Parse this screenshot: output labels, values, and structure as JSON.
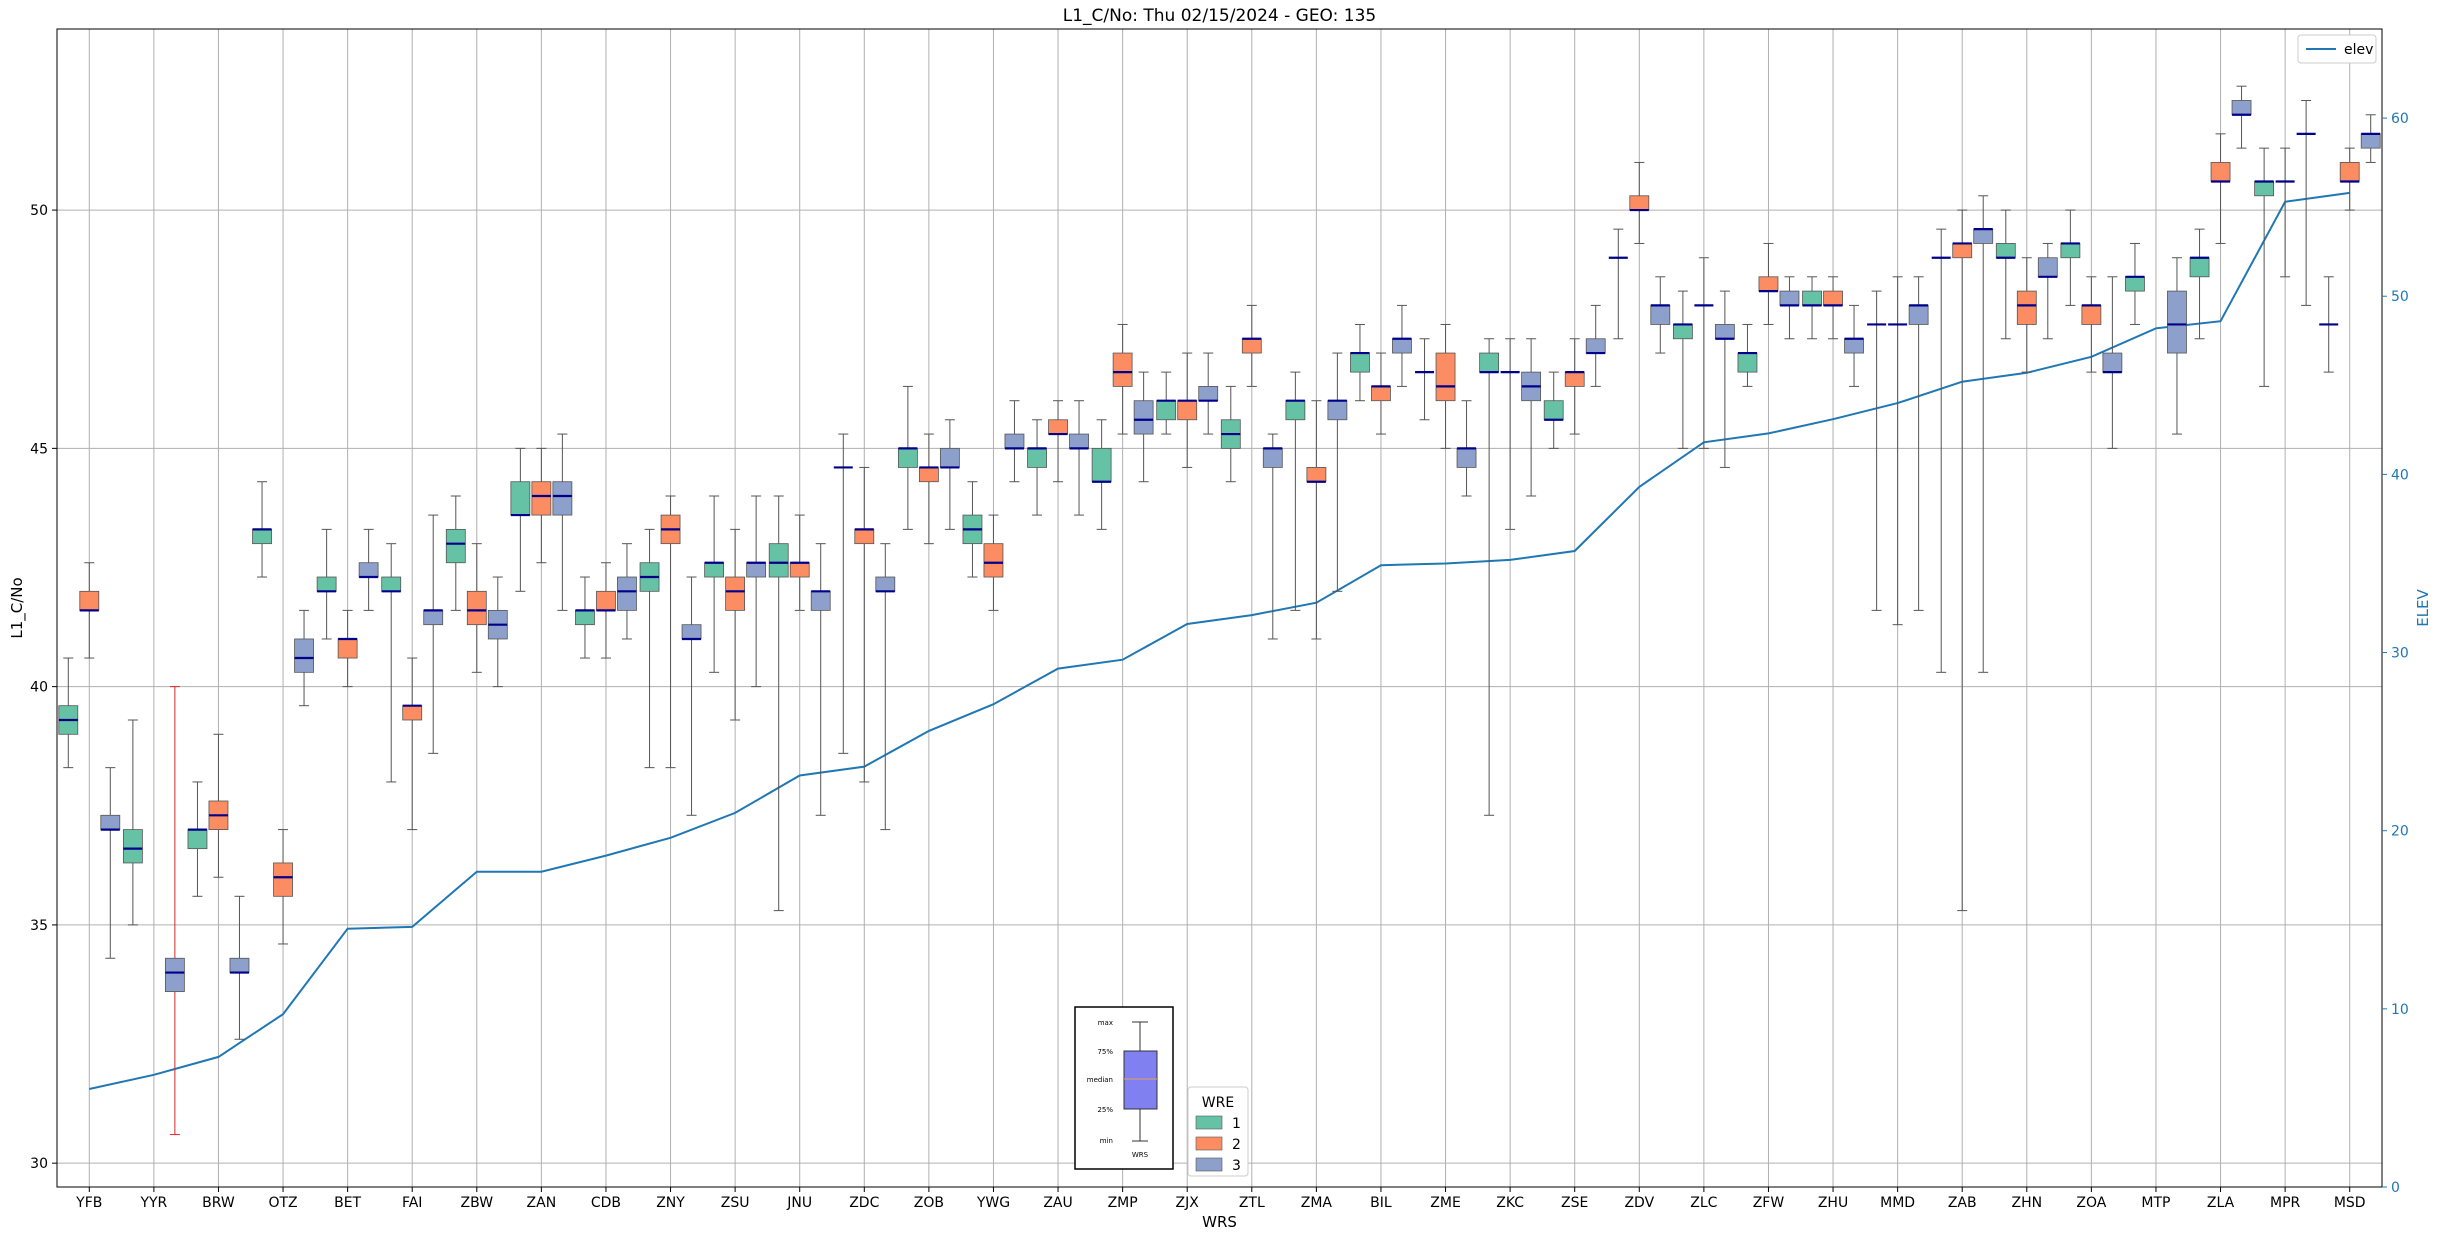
{
  "chart_data": {
    "type": "box",
    "title": "L1_C/No: Thu 02/15/2024 - GEO: 135",
    "xlabel": "WRS",
    "ylabel": "L1_C/No",
    "y2label": "ELEV",
    "ylim": [
      29.5,
      53.8
    ],
    "y2lim": [
      0,
      65
    ],
    "yticks": [
      30,
      35,
      40,
      45,
      50
    ],
    "y2ticks": [
      0,
      10,
      20,
      30,
      40,
      50,
      60
    ],
    "grid": true,
    "series_names": [
      "1",
      "2",
      "3"
    ],
    "series_colors": [
      "#66c2a5",
      "#fc8d62",
      "#8da0cb"
    ],
    "median_color": "#00008b",
    "elev_color": "#1f77b4",
    "whisker_color": "#555555",
    "categories": [
      "YFB",
      "YYR",
      "BRW",
      "OTZ",
      "BET",
      "FAI",
      "ZBW",
      "ZAN",
      "CDB",
      "ZNY",
      "ZSU",
      "JNU",
      "ZDC",
      "ZOB",
      "YWG",
      "ZAU",
      "ZMP",
      "ZJX",
      "ZTL",
      "ZMA",
      "BIL",
      "ZME",
      "ZKC",
      "ZSE",
      "ZDV",
      "ZLC",
      "ZFW",
      "ZHU",
      "MMD",
      "ZAB",
      "ZHN",
      "ZOA",
      "MTP",
      "ZLA",
      "MPR",
      "MSD"
    ],
    "boxes": [
      {
        "station": "YFB",
        "wre": 1,
        "min": 38.3,
        "q1": 39.0,
        "median": 39.3,
        "q3": 39.6,
        "max": 40.6
      },
      {
        "station": "YFB",
        "wre": 2,
        "min": 40.6,
        "q1": 41.6,
        "median": 41.6,
        "q3": 42.0,
        "max": 42.6
      },
      {
        "station": "YFB",
        "wre": 3,
        "min": 34.3,
        "q1": 37.0,
        "median": 37.0,
        "q3": 37.3,
        "max": 38.3
      },
      {
        "station": "YYR",
        "wre": 1,
        "min": 35.0,
        "q1": 36.3,
        "median": 36.6,
        "q3": 37.0,
        "max": 39.3
      },
      {
        "station": "YYR",
        "wre": 3,
        "min": 30.6,
        "q1": 33.6,
        "median": 34.0,
        "q3": 34.3,
        "max": 40.0,
        "whisker_color": "#d62728"
      },
      {
        "station": "BRW",
        "wre": 1,
        "min": 35.6,
        "q1": 36.6,
        "median": 37.0,
        "q3": 37.0,
        "max": 38.0
      },
      {
        "station": "BRW",
        "wre": 2,
        "min": 36.0,
        "q1": 37.0,
        "median": 37.3,
        "q3": 37.6,
        "max": 39.0
      },
      {
        "station": "BRW",
        "wre": 3,
        "min": 32.6,
        "q1": 34.0,
        "median": 34.0,
        "q3": 34.3,
        "max": 35.6
      },
      {
        "station": "OTZ",
        "wre": 1,
        "min": 42.3,
        "q1": 43.0,
        "median": 43.3,
        "q3": 43.3,
        "max": 44.3
      },
      {
        "station": "OTZ",
        "wre": 2,
        "min": 34.6,
        "q1": 35.6,
        "median": 36.0,
        "q3": 36.3,
        "max": 37.0
      },
      {
        "station": "OTZ",
        "wre": 3,
        "min": 39.6,
        "q1": 40.3,
        "median": 40.6,
        "q3": 41.0,
        "max": 41.6
      },
      {
        "station": "BET",
        "wre": 1,
        "min": 41.0,
        "q1": 42.0,
        "median": 42.0,
        "q3": 42.3,
        "max": 43.3
      },
      {
        "station": "BET",
        "wre": 2,
        "min": 40.0,
        "q1": 40.6,
        "median": 41.0,
        "q3": 41.0,
        "max": 41.6
      },
      {
        "station": "BET",
        "wre": 3,
        "min": 41.6,
        "q1": 42.3,
        "median": 42.3,
        "q3": 42.6,
        "max": 43.3
      },
      {
        "station": "FAI",
        "wre": 1,
        "min": 38.0,
        "q1": 42.0,
        "median": 42.0,
        "q3": 42.3,
        "max": 43.0
      },
      {
        "station": "FAI",
        "wre": 2,
        "min": 37.0,
        "q1": 39.3,
        "median": 39.6,
        "q3": 39.6,
        "max": 40.6
      },
      {
        "station": "FAI",
        "wre": 3,
        "min": 38.6,
        "q1": 41.3,
        "median": 41.6,
        "q3": 41.6,
        "max": 43.6
      },
      {
        "station": "ZBW",
        "wre": 1,
        "min": 41.6,
        "q1": 42.6,
        "median": 43.0,
        "q3": 43.3,
        "max": 44.0
      },
      {
        "station": "ZBW",
        "wre": 2,
        "min": 40.3,
        "q1": 41.3,
        "median": 41.6,
        "q3": 42.0,
        "max": 43.0
      },
      {
        "station": "ZBW",
        "wre": 3,
        "min": 40.0,
        "q1": 41.0,
        "median": 41.3,
        "q3": 41.6,
        "max": 42.3
      },
      {
        "station": "ZAN",
        "wre": 1,
        "min": 42.0,
        "q1": 43.6,
        "median": 43.6,
        "q3": 44.3,
        "max": 45.0
      },
      {
        "station": "ZAN",
        "wre": 2,
        "min": 42.6,
        "q1": 43.6,
        "median": 44.0,
        "q3": 44.3,
        "max": 45.0
      },
      {
        "station": "ZAN",
        "wre": 3,
        "min": 41.6,
        "q1": 43.6,
        "median": 44.0,
        "q3": 44.3,
        "max": 45.3
      },
      {
        "station": "CDB",
        "wre": 1,
        "min": 40.6,
        "q1": 41.3,
        "median": 41.6,
        "q3": 41.6,
        "max": 42.3
      },
      {
        "station": "CDB",
        "wre": 2,
        "min": 40.6,
        "q1": 41.6,
        "median": 41.6,
        "q3": 42.0,
        "max": 42.6
      },
      {
        "station": "CDB",
        "wre": 3,
        "min": 41.0,
        "q1": 41.6,
        "median": 42.0,
        "q3": 42.3,
        "max": 43.0
      },
      {
        "station": "ZNY",
        "wre": 1,
        "min": 38.3,
        "q1": 42.0,
        "median": 42.3,
        "q3": 42.6,
        "max": 43.3
      },
      {
        "station": "ZNY",
        "wre": 2,
        "min": 38.3,
        "q1": 43.0,
        "median": 43.3,
        "q3": 43.6,
        "max": 44.0
      },
      {
        "station": "ZNY",
        "wre": 3,
        "min": 37.3,
        "q1": 41.0,
        "median": 41.0,
        "q3": 41.3,
        "max": 42.3
      },
      {
        "station": "ZSU",
        "wre": 1,
        "min": 40.3,
        "q1": 42.3,
        "median": 42.6,
        "q3": 42.6,
        "max": 44.0
      },
      {
        "station": "ZSU",
        "wre": 2,
        "min": 39.3,
        "q1": 41.6,
        "median": 42.0,
        "q3": 42.3,
        "max": 43.3
      },
      {
        "station": "ZSU",
        "wre": 3,
        "min": 40.0,
        "q1": 42.3,
        "median": 42.6,
        "q3": 42.6,
        "max": 44.0
      },
      {
        "station": "JNU",
        "wre": 1,
        "min": 35.3,
        "q1": 42.3,
        "median": 42.6,
        "q3": 43.0,
        "max": 44.0
      },
      {
        "station": "JNU",
        "wre": 2,
        "min": 41.6,
        "q1": 42.3,
        "median": 42.6,
        "q3": 42.6,
        "max": 43.6
      },
      {
        "station": "JNU",
        "wre": 3,
        "min": 37.3,
        "q1": 41.6,
        "median": 42.0,
        "q3": 42.0,
        "max": 43.0
      },
      {
        "station": "ZDC",
        "wre": 1,
        "min": 38.6,
        "q1": 44.6,
        "median": 44.6,
        "q3": 44.6,
        "max": 45.3
      },
      {
        "station": "ZDC",
        "wre": 2,
        "min": 38.0,
        "q1": 43.0,
        "median": 43.3,
        "q3": 43.3,
        "max": 44.6
      },
      {
        "station": "ZDC",
        "wre": 3,
        "min": 37.0,
        "q1": 42.0,
        "median": 42.0,
        "q3": 42.3,
        "max": 43.0
      },
      {
        "station": "ZOB",
        "wre": 1,
        "min": 43.3,
        "q1": 44.6,
        "median": 45.0,
        "q3": 45.0,
        "max": 46.3
      },
      {
        "station": "ZOB",
        "wre": 2,
        "min": 43.0,
        "q1": 44.3,
        "median": 44.6,
        "q3": 44.6,
        "max": 45.3
      },
      {
        "station": "ZOB",
        "wre": 3,
        "min": 43.3,
        "q1": 44.6,
        "median": 44.6,
        "q3": 45.0,
        "max": 45.6
      },
      {
        "station": "YWG",
        "wre": 1,
        "min": 42.3,
        "q1": 43.0,
        "median": 43.3,
        "q3": 43.6,
        "max": 44.3
      },
      {
        "station": "YWG",
        "wre": 2,
        "min": 41.6,
        "q1": 42.3,
        "median": 42.6,
        "q3": 43.0,
        "max": 43.6
      },
      {
        "station": "YWG",
        "wre": 3,
        "min": 44.3,
        "q1": 45.0,
        "median": 45.0,
        "q3": 45.3,
        "max": 46.0
      },
      {
        "station": "ZAU",
        "wre": 1,
        "min": 43.6,
        "q1": 44.6,
        "median": 45.0,
        "q3": 45.0,
        "max": 45.6
      },
      {
        "station": "ZAU",
        "wre": 2,
        "min": 44.3,
        "q1": 45.3,
        "median": 45.3,
        "q3": 45.6,
        "max": 46.0
      },
      {
        "station": "ZAU",
        "wre": 3,
        "min": 43.6,
        "q1": 45.0,
        "median": 45.0,
        "q3": 45.3,
        "max": 46.0
      },
      {
        "station": "ZMP",
        "wre": 1,
        "min": 43.3,
        "q1": 44.3,
        "median": 44.3,
        "q3": 45.0,
        "max": 45.6
      },
      {
        "station": "ZMP",
        "wre": 2,
        "min": 45.3,
        "q1": 46.3,
        "median": 46.6,
        "q3": 47.0,
        "max": 47.6
      },
      {
        "station": "ZMP",
        "wre": 3,
        "min": 44.3,
        "q1": 45.3,
        "median": 45.6,
        "q3": 46.0,
        "max": 46.6
      },
      {
        "station": "ZJX",
        "wre": 1,
        "min": 45.3,
        "q1": 45.6,
        "median": 46.0,
        "q3": 46.0,
        "max": 46.6
      },
      {
        "station": "ZJX",
        "wre": 2,
        "min": 44.6,
        "q1": 45.6,
        "median": 46.0,
        "q3": 46.0,
        "max": 47.0
      },
      {
        "station": "ZJX",
        "wre": 3,
        "min": 45.3,
        "q1": 46.0,
        "median": 46.0,
        "q3": 46.3,
        "max": 47.0
      },
      {
        "station": "ZTL",
        "wre": 1,
        "min": 44.3,
        "q1": 45.0,
        "median": 45.3,
        "q3": 45.6,
        "max": 46.3
      },
      {
        "station": "ZTL",
        "wre": 2,
        "min": 46.3,
        "q1": 47.0,
        "median": 47.3,
        "q3": 47.3,
        "max": 48.0
      },
      {
        "station": "ZTL",
        "wre": 3,
        "min": 41.0,
        "q1": 44.6,
        "median": 45.0,
        "q3": 45.0,
        "max": 45.3
      },
      {
        "station": "ZMA",
        "wre": 1,
        "min": 41.6,
        "q1": 45.6,
        "median": 46.0,
        "q3": 46.0,
        "max": 46.6
      },
      {
        "station": "ZMA",
        "wre": 2,
        "min": 41.0,
        "q1": 44.3,
        "median": 44.3,
        "q3": 44.6,
        "max": 46.0
      },
      {
        "station": "ZMA",
        "wre": 3,
        "min": 42.0,
        "q1": 45.6,
        "median": 46.0,
        "q3": 46.0,
        "max": 47.0
      },
      {
        "station": "BIL",
        "wre": 1,
        "min": 46.0,
        "q1": 46.6,
        "median": 47.0,
        "q3": 47.0,
        "max": 47.6
      },
      {
        "station": "BIL",
        "wre": 2,
        "min": 45.3,
        "q1": 46.0,
        "median": 46.3,
        "q3": 46.3,
        "max": 47.0
      },
      {
        "station": "BIL",
        "wre": 3,
        "min": 46.3,
        "q1": 47.0,
        "median": 47.3,
        "q3": 47.3,
        "max": 48.0
      },
      {
        "station": "ZME",
        "wre": 1,
        "min": 45.6,
        "q1": 46.6,
        "median": 46.6,
        "q3": 46.6,
        "max": 47.3
      },
      {
        "station": "ZME",
        "wre": 2,
        "min": 45.0,
        "q1": 46.0,
        "median": 46.3,
        "q3": 47.0,
        "max": 47.6
      },
      {
        "station": "ZME",
        "wre": 3,
        "min": 44.0,
        "q1": 44.6,
        "median": 45.0,
        "q3": 45.0,
        "max": 46.0
      },
      {
        "station": "ZKC",
        "wre": 1,
        "min": 37.3,
        "q1": 46.6,
        "median": 46.6,
        "q3": 47.0,
        "max": 47.3
      },
      {
        "station": "ZKC",
        "wre": 2,
        "min": 43.3,
        "q1": 46.6,
        "median": 46.6,
        "q3": 46.6,
        "max": 47.3
      },
      {
        "station": "ZKC",
        "wre": 3,
        "min": 44.0,
        "q1": 46.0,
        "median": 46.3,
        "q3": 46.6,
        "max": 47.3
      },
      {
        "station": "ZSE",
        "wre": 1,
        "min": 45.0,
        "q1": 45.6,
        "median": 45.6,
        "q3": 46.0,
        "max": 46.6
      },
      {
        "station": "ZSE",
        "wre": 2,
        "min": 45.3,
        "q1": 46.3,
        "median": 46.6,
        "q3": 46.6,
        "max": 47.3
      },
      {
        "station": "ZSE",
        "wre": 3,
        "min": 46.3,
        "q1": 47.0,
        "median": 47.0,
        "q3": 47.3,
        "max": 48.0
      },
      {
        "station": "ZDV",
        "wre": 1,
        "min": 47.3,
        "q1": 49.0,
        "median": 49.0,
        "q3": 49.0,
        "max": 49.6
      },
      {
        "station": "ZDV",
        "wre": 2,
        "min": 49.3,
        "q1": 50.0,
        "median": 50.0,
        "q3": 50.3,
        "max": 51.0
      },
      {
        "station": "ZDV",
        "wre": 3,
        "min": 47.0,
        "q1": 47.6,
        "median": 48.0,
        "q3": 48.0,
        "max": 48.6
      },
      {
        "station": "ZLC",
        "wre": 1,
        "min": 45.0,
        "q1": 47.3,
        "median": 47.6,
        "q3": 47.6,
        "max": 48.3
      },
      {
        "station": "ZLC",
        "wre": 2,
        "min": 45.0,
        "q1": 48.0,
        "median": 48.0,
        "q3": 48.0,
        "max": 49.0
      },
      {
        "station": "ZLC",
        "wre": 3,
        "min": 44.6,
        "q1": 47.3,
        "median": 47.3,
        "q3": 47.6,
        "max": 48.3
      },
      {
        "station": "ZFW",
        "wre": 1,
        "min": 46.3,
        "q1": 46.6,
        "median": 47.0,
        "q3": 47.0,
        "max": 47.6
      },
      {
        "station": "ZFW",
        "wre": 2,
        "min": 47.6,
        "q1": 48.3,
        "median": 48.3,
        "q3": 48.6,
        "max": 49.3
      },
      {
        "station": "ZFW",
        "wre": 3,
        "min": 47.3,
        "q1": 48.0,
        "median": 48.0,
        "q3": 48.3,
        "max": 48.6
      },
      {
        "station": "ZHU",
        "wre": 1,
        "min": 47.3,
        "q1": 48.0,
        "median": 48.0,
        "q3": 48.3,
        "max": 48.6
      },
      {
        "station": "ZHU",
        "wre": 2,
        "min": 47.3,
        "q1": 48.0,
        "median": 48.0,
        "q3": 48.3,
        "max": 48.6
      },
      {
        "station": "ZHU",
        "wre": 3,
        "min": 46.3,
        "q1": 47.0,
        "median": 47.3,
        "q3": 47.3,
        "max": 48.0
      },
      {
        "station": "MMD",
        "wre": 1,
        "min": 41.6,
        "q1": 47.6,
        "median": 47.6,
        "q3": 47.6,
        "max": 48.3
      },
      {
        "station": "MMD",
        "wre": 2,
        "min": 41.3,
        "q1": 47.6,
        "median": 47.6,
        "q3": 47.6,
        "max": 48.6
      },
      {
        "station": "MMD",
        "wre": 3,
        "min": 41.6,
        "q1": 47.6,
        "median": 48.0,
        "q3": 48.0,
        "max": 48.6
      },
      {
        "station": "ZAB",
        "wre": 1,
        "min": 40.3,
        "q1": 49.0,
        "median": 49.0,
        "q3": 49.0,
        "max": 49.6
      },
      {
        "station": "ZAB",
        "wre": 2,
        "min": 35.3,
        "q1": 49.0,
        "median": 49.3,
        "q3": 49.3,
        "max": 50.0
      },
      {
        "station": "ZAB",
        "wre": 3,
        "min": 40.3,
        "q1": 49.3,
        "median": 49.6,
        "q3": 49.6,
        "max": 50.3
      },
      {
        "station": "ZHN",
        "wre": 1,
        "min": 47.3,
        "q1": 49.0,
        "median": 49.0,
        "q3": 49.3,
        "max": 50.0
      },
      {
        "station": "ZHN",
        "wre": 2,
        "min": 46.6,
        "q1": 47.6,
        "median": 48.0,
        "q3": 48.3,
        "max": 49.0
      },
      {
        "station": "ZHN",
        "wre": 3,
        "min": 47.3,
        "q1": 48.6,
        "median": 48.6,
        "q3": 49.0,
        "max": 49.3
      },
      {
        "station": "ZOA",
        "wre": 1,
        "min": 48.0,
        "q1": 49.0,
        "median": 49.3,
        "q3": 49.3,
        "max": 50.0
      },
      {
        "station": "ZOA",
        "wre": 2,
        "min": 46.6,
        "q1": 47.6,
        "median": 48.0,
        "q3": 48.0,
        "max": 48.6
      },
      {
        "station": "ZOA",
        "wre": 3,
        "min": 45.0,
        "q1": 46.6,
        "median": 46.6,
        "q3": 47.0,
        "max": 48.6
      },
      {
        "station": "MTP",
        "wre": 1,
        "min": 47.6,
        "q1": 48.3,
        "median": 48.6,
        "q3": 48.6,
        "max": 49.3
      },
      {
        "station": "MTP",
        "wre": 3,
        "min": 45.3,
        "q1": 47.0,
        "median": 47.6,
        "q3": 48.3,
        "max": 49.0
      },
      {
        "station": "ZLA",
        "wre": 1,
        "min": 47.3,
        "q1": 48.6,
        "median": 49.0,
        "q3": 49.0,
        "max": 49.6
      },
      {
        "station": "ZLA",
        "wre": 2,
        "min": 49.3,
        "q1": 50.6,
        "median": 50.6,
        "q3": 51.0,
        "max": 51.6
      },
      {
        "station": "ZLA",
        "wre": 3,
        "min": 51.3,
        "q1": 52.0,
        "median": 52.0,
        "q3": 52.3,
        "max": 52.6
      },
      {
        "station": "MPR",
        "wre": 1,
        "min": 46.3,
        "q1": 50.3,
        "median": 50.6,
        "q3": 50.6,
        "max": 51.3
      },
      {
        "station": "MPR",
        "wre": 2,
        "min": 48.6,
        "q1": 50.6,
        "median": 50.6,
        "q3": 50.6,
        "max": 51.3
      },
      {
        "station": "MPR",
        "wre": 3,
        "min": 48.0,
        "q1": 51.6,
        "median": 51.6,
        "q3": 51.6,
        "max": 52.3
      },
      {
        "station": "MSD",
        "wre": 1,
        "min": 46.6,
        "q1": 47.6,
        "median": 47.6,
        "q3": 47.6,
        "max": 48.6
      },
      {
        "station": "MSD",
        "wre": 2,
        "min": 50.0,
        "q1": 50.6,
        "median": 50.6,
        "q3": 51.0,
        "max": 51.3
      },
      {
        "station": "MSD",
        "wre": 3,
        "min": 51.0,
        "q1": 51.3,
        "median": 51.6,
        "q3": 51.6,
        "max": 52.0
      }
    ],
    "elev_series": {
      "name": "elev",
      "values": [
        5.5,
        6.3,
        7.3,
        9.7,
        14.5,
        14.6,
        17.7,
        17.7,
        18.6,
        19.6,
        21.0,
        23.1,
        23.6,
        25.6,
        27.1,
        29.1,
        29.6,
        31.6,
        32.1,
        32.8,
        34.9,
        35.0,
        35.2,
        35.7,
        39.3,
        41.8,
        42.3,
        43.1,
        44.0,
        45.2,
        45.7,
        46.6,
        48.2,
        48.6,
        55.3,
        55.8
      ]
    },
    "legend_wre": {
      "title": "WRE",
      "entries": [
        "1",
        "2",
        "3"
      ]
    },
    "legend_elev": {
      "entries": [
        "elev"
      ]
    },
    "key_box": {
      "labels": [
        "max",
        "75%",
        "median",
        "25%",
        "min"
      ],
      "xlabel": "WRS",
      "fill_color": "#8080f0"
    }
  }
}
